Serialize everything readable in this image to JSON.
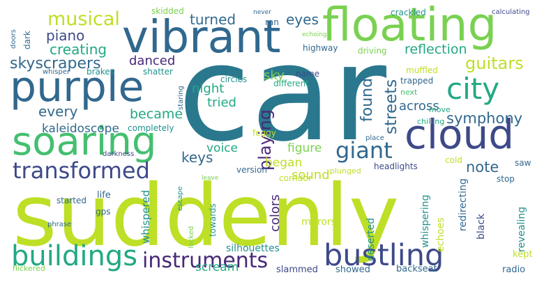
{
  "palette": {
    "background": "#ffffff",
    "teal_dark": "#2a788e",
    "teal": "#21918c",
    "green_teal": "#22a884",
    "green": "#44bf70",
    "light_green": "#7ad151",
    "yellow_green": "#bddf26",
    "purple": "#482878",
    "indigo": "#3e4989",
    "blue": "#31688e",
    "dark": "#440154"
  },
  "words": [
    {
      "text": "car",
      "color": "#2a788e"
    },
    {
      "text": "suddenly",
      "color": "#bddf26"
    },
    {
      "text": "vibrant",
      "color": "#31688e"
    },
    {
      "text": "floating",
      "color": "#7ad151"
    },
    {
      "text": "purple",
      "color": "#31688e"
    },
    {
      "text": "cloud",
      "color": "#3e4989"
    },
    {
      "text": "soaring",
      "color": "#44bf70"
    },
    {
      "text": "city",
      "color": "#22a884"
    },
    {
      "text": "bustling",
      "color": "#3e4989"
    },
    {
      "text": "buildings",
      "color": "#22a884"
    },
    {
      "text": "transformed",
      "color": "#3e4989"
    },
    {
      "text": "instruments",
      "color": "#482878"
    },
    {
      "text": "giant",
      "color": "#31688e"
    },
    {
      "text": "musical",
      "color": "#bddf26"
    },
    {
      "text": "skyscrapers",
      "color": "#31688e"
    },
    {
      "text": "guitars",
      "color": "#bddf26"
    },
    {
      "text": "symphony",
      "color": "#31688e"
    },
    {
      "text": "streets",
      "color": "#31688e"
    },
    {
      "text": "playing",
      "color": "#482878"
    },
    {
      "text": "found",
      "color": "#31688e"
    },
    {
      "text": "piano",
      "color": "#3e4989"
    },
    {
      "text": "creating",
      "color": "#22a884"
    },
    {
      "text": "turned",
      "color": "#31688e"
    },
    {
      "text": "reflection",
      "color": "#22a884"
    },
    {
      "text": "eyes",
      "color": "#31688e"
    },
    {
      "text": "became",
      "color": "#22a884"
    },
    {
      "text": "every",
      "color": "#31688e"
    },
    {
      "text": "kaleidoscope",
      "color": "#31688e"
    },
    {
      "text": "keys",
      "color": "#31688e"
    },
    {
      "text": "note",
      "color": "#31688e"
    },
    {
      "text": "colors",
      "color": "#482878"
    },
    {
      "text": "danced",
      "color": "#482878"
    },
    {
      "text": "night",
      "color": "#22a884"
    },
    {
      "text": "tried",
      "color": "#22a884"
    },
    {
      "text": "sky",
      "color": "#7ad151"
    },
    {
      "text": "across",
      "color": "#31688e"
    },
    {
      "text": "voice",
      "color": "#22a884"
    },
    {
      "text": "figure",
      "color": "#7ad151"
    },
    {
      "text": "began",
      "color": "#bddf26"
    },
    {
      "text": "sound",
      "color": "#bddf26"
    },
    {
      "text": "scream",
      "color": "#22a884"
    },
    {
      "text": "whispered",
      "color": "#21918c"
    },
    {
      "text": "silhouettes",
      "color": "#21918c"
    },
    {
      "text": "mirrors",
      "color": "#bddf26"
    },
    {
      "text": "deserted",
      "color": "#21918c"
    },
    {
      "text": "whispering",
      "color": "#21918c"
    },
    {
      "text": "echoes",
      "color": "#bddf26"
    },
    {
      "text": "redirecting",
      "color": "#31688e"
    },
    {
      "text": "revealing",
      "color": "#21918c"
    },
    {
      "text": "black",
      "color": "#3e4989"
    },
    {
      "text": "kept",
      "color": "#bddf26"
    },
    {
      "text": "radio",
      "color": "#31688e"
    },
    {
      "text": "backseat",
      "color": "#31688e"
    },
    {
      "text": "showed",
      "color": "#31688e"
    },
    {
      "text": "slammed",
      "color": "#3e4989"
    },
    {
      "text": "skidded",
      "color": "#7ad151"
    },
    {
      "text": "never",
      "color": "#31688e"
    },
    {
      "text": "crackled",
      "color": "#21918c"
    },
    {
      "text": "calculating",
      "color": "#3e4989"
    },
    {
      "text": "doors",
      "color": "#31688e"
    },
    {
      "text": "dark",
      "color": "#31688e"
    },
    {
      "text": "ran",
      "color": "#31688e"
    },
    {
      "text": "echoing",
      "color": "#7ad151"
    },
    {
      "text": "highway",
      "color": "#31688e"
    },
    {
      "text": "driving",
      "color": "#7ad151"
    },
    {
      "text": "whisper",
      "color": "#31688e"
    },
    {
      "text": "brakes",
      "color": "#21918c"
    },
    {
      "text": "shatter",
      "color": "#21918c"
    },
    {
      "text": "circles",
      "color": "#21918c"
    },
    {
      "text": "name",
      "color": "#3e4989"
    },
    {
      "text": "different",
      "color": "#22a884"
    },
    {
      "text": "trapped",
      "color": "#31688e"
    },
    {
      "text": "next",
      "color": "#44bf70"
    },
    {
      "text": "muffled",
      "color": "#bddf26"
    },
    {
      "text": "move",
      "color": "#22a884"
    },
    {
      "text": "chilling",
      "color": "#22a884"
    },
    {
      "text": "staring",
      "color": "#31688e"
    },
    {
      "text": "foggy",
      "color": "#bddf26"
    },
    {
      "text": "completely",
      "color": "#21918c"
    },
    {
      "text": "place",
      "color": "#31688e"
    },
    {
      "text": "darkness",
      "color": "#3e4989"
    },
    {
      "text": "version",
      "color": "#31688e"
    },
    {
      "text": "corridor",
      "color": "#bddf26"
    },
    {
      "text": "plunged",
      "color": "#bddf26"
    },
    {
      "text": "headlights",
      "color": "#3e4989"
    },
    {
      "text": "cold",
      "color": "#bddf26"
    },
    {
      "text": "saw",
      "color": "#31688e"
    },
    {
      "text": "leave",
      "color": "#7ad151"
    },
    {
      "text": "life",
      "color": "#31688e"
    },
    {
      "text": "stop",
      "color": "#31688e"
    },
    {
      "text": "escape",
      "color": "#21918c"
    },
    {
      "text": "started",
      "color": "#31688e"
    },
    {
      "text": "gps",
      "color": "#31688e"
    },
    {
      "text": "towards",
      "color": "#21918c"
    },
    {
      "text": "phrase",
      "color": "#31688e"
    },
    {
      "text": "locked",
      "color": "#7ad151"
    },
    {
      "text": "flickered",
      "color": "#7ad151"
    }
  ]
}
